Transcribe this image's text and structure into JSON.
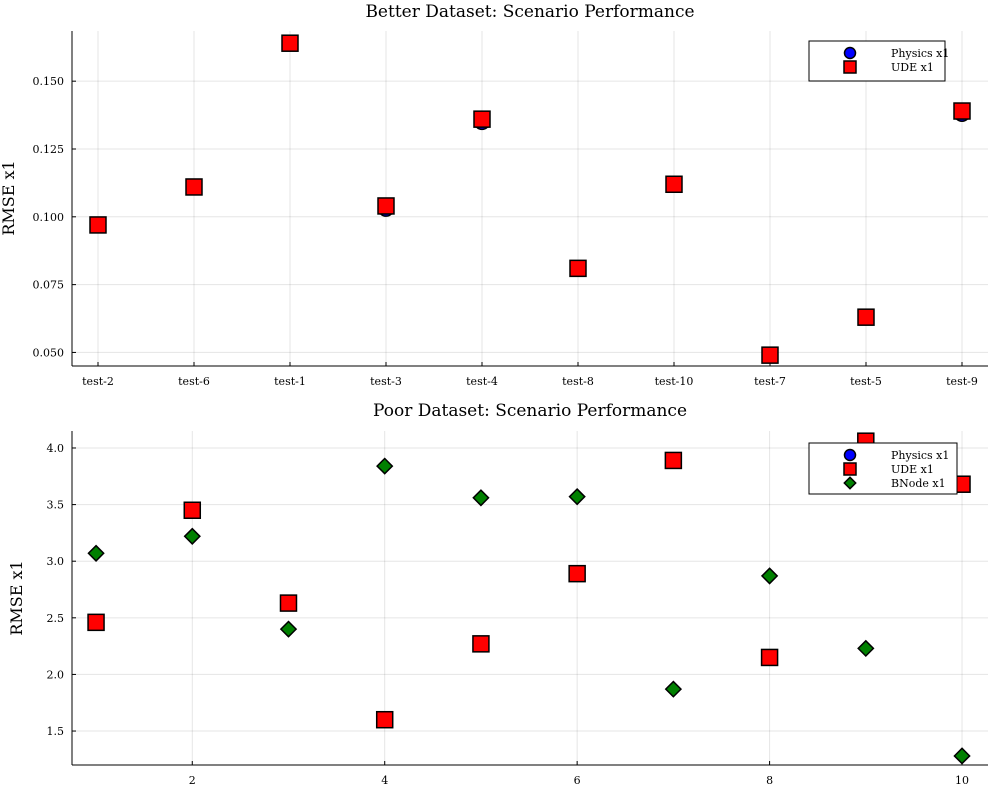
{
  "chart_data": [
    {
      "type": "scatter",
      "title": "Better Dataset: Scenario Performance",
      "xlabel": "",
      "ylabel": "RMSE x1",
      "categories": [
        "test-2",
        "test-6",
        "test-1",
        "test-3",
        "test-4",
        "test-8",
        "test-10",
        "test-7",
        "test-5",
        "test-9"
      ],
      "ylim": [
        0.045,
        0.1685
      ],
      "yticks": [
        0.05,
        0.075,
        0.1,
        0.125,
        0.15
      ],
      "ytick_labels": [
        "0.050",
        "0.075",
        "0.100",
        "0.125",
        "0.150"
      ],
      "grid": true,
      "legend_position": "top-right",
      "series": [
        {
          "name": "Physics x1",
          "marker": "circle",
          "color": "#0000ff",
          "values": [
            0.097,
            0.111,
            0.164,
            0.103,
            0.135,
            0.081,
            0.112,
            0.049,
            0.063,
            0.138
          ]
        },
        {
          "name": "UDE x1",
          "marker": "square",
          "color": "#ff0000",
          "values": [
            0.097,
            0.111,
            0.164,
            0.104,
            0.136,
            0.081,
            0.112,
            0.049,
            0.063,
            0.139
          ]
        }
      ]
    },
    {
      "type": "scatter",
      "title": "Poor Dataset: Scenario Performance",
      "xlabel": "",
      "ylabel": "RMSE x1",
      "x": [
        1,
        2,
        3,
        4,
        5,
        6,
        7,
        8,
        9,
        10
      ],
      "xlim": [
        0.75,
        10.27
      ],
      "xticks": [
        2,
        4,
        6,
        8,
        10
      ],
      "ylim": [
        1.2,
        4.15
      ],
      "yticks": [
        1.5,
        2.0,
        2.5,
        3.0,
        3.5,
        4.0
      ],
      "ytick_labels": [
        "1.5",
        "2.0",
        "2.5",
        "3.0",
        "3.5",
        "4.0"
      ],
      "grid": true,
      "legend_position": "top-right",
      "series": [
        {
          "name": "Physics x1",
          "marker": "circle",
          "color": "#0000ff",
          "values": [
            2.46,
            3.45,
            2.63,
            1.6,
            2.27,
            2.89,
            3.89,
            2.15,
            4.06,
            3.68
          ]
        },
        {
          "name": "UDE x1",
          "marker": "square",
          "color": "#ff0000",
          "values": [
            2.46,
            3.45,
            2.63,
            1.6,
            2.27,
            2.89,
            3.89,
            2.15,
            4.06,
            3.68
          ]
        },
        {
          "name": "BNode x1",
          "marker": "diamond",
          "color": "#008000",
          "values": [
            3.07,
            3.22,
            2.4,
            3.84,
            3.56,
            3.57,
            1.87,
            2.87,
            2.23,
            1.28
          ]
        }
      ]
    }
  ]
}
